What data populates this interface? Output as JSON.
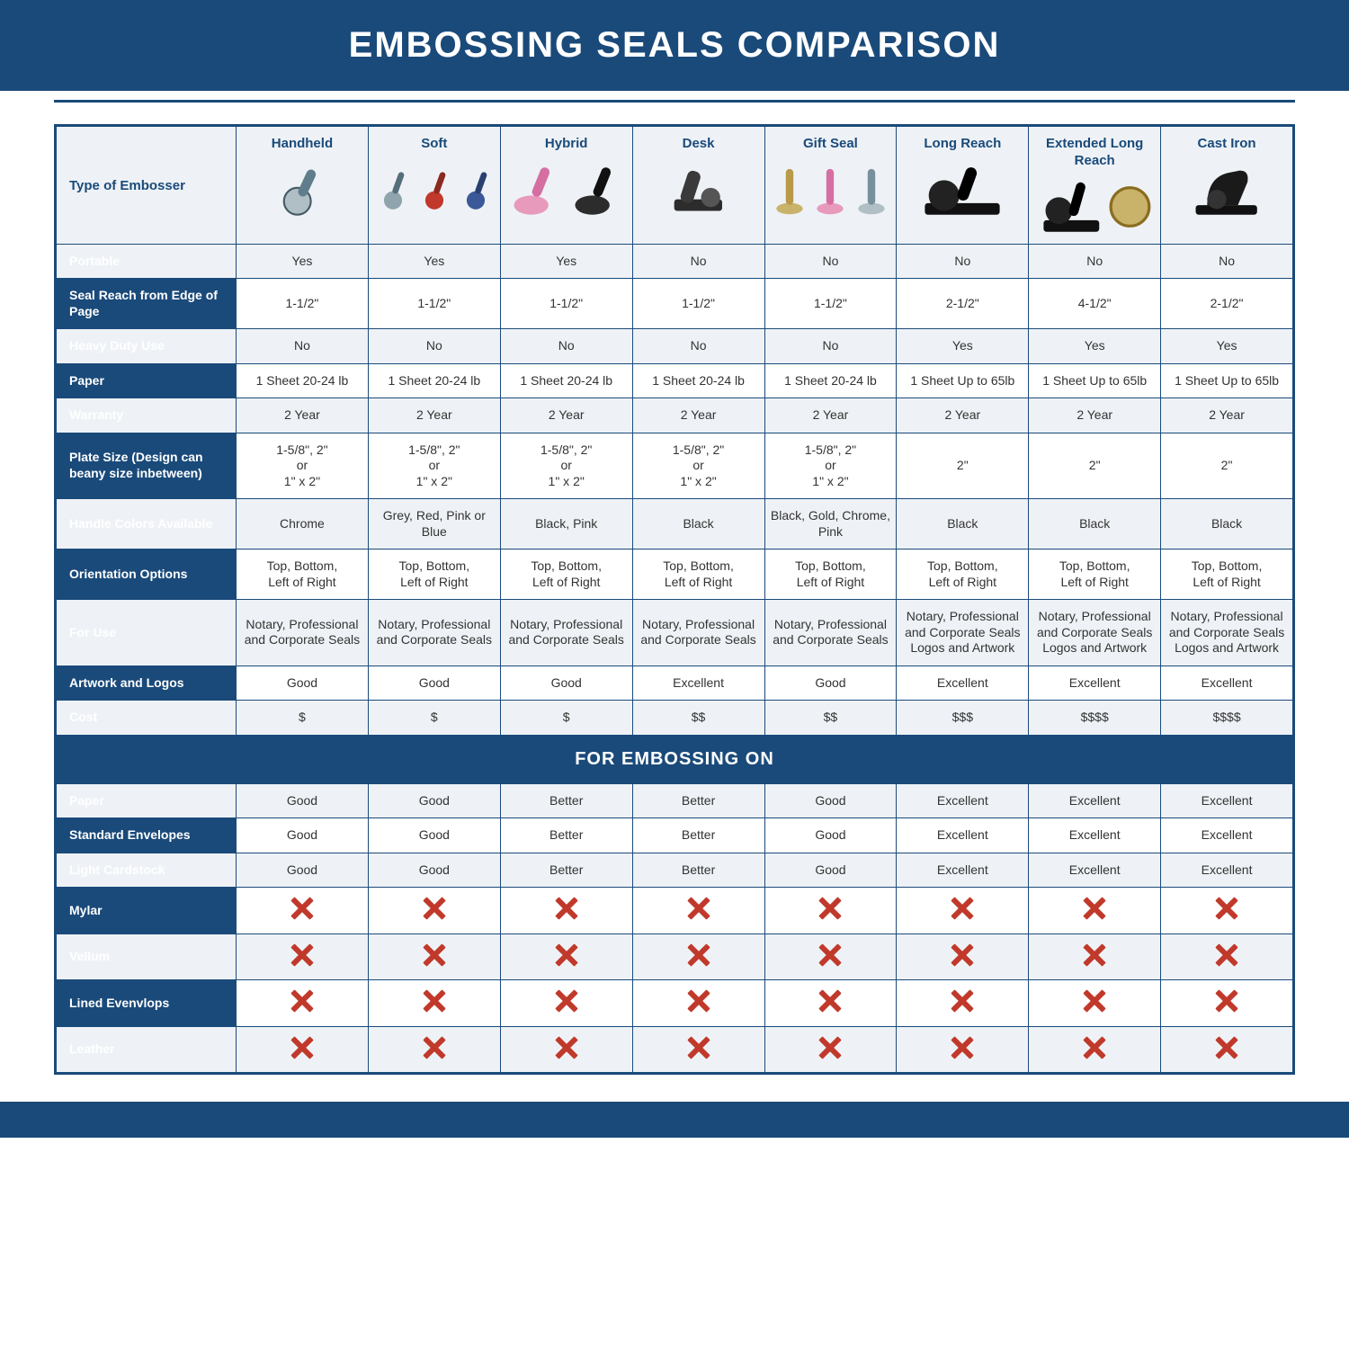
{
  "title": "EMBOSSING SEALS COMPARISON",
  "colors": {
    "brand": "#1a4a7a",
    "altRow": "#eef2f6",
    "bg": "#ffffff",
    "text": "#333333",
    "xmark": "#c0392b"
  },
  "table": {
    "headerLabel": "Type of Embosser",
    "columns": [
      "Handheld",
      "Soft",
      "Hybrid",
      "Desk",
      "Gift Seal",
      "Long Reach",
      "Extended Long Reach",
      "Cast Iron"
    ],
    "columnIcons": [
      "handheld",
      "soft-trio",
      "hybrid-pair",
      "desk",
      "gift-trio",
      "long-reach",
      "extended-long-reach",
      "cast-iron"
    ],
    "rows": [
      {
        "label": "Portable",
        "alt": true,
        "cells": [
          "Yes",
          "Yes",
          "Yes",
          "No",
          "No",
          "No",
          "No",
          "No"
        ]
      },
      {
        "label": "Seal Reach from Edge of Page",
        "alt": false,
        "cells": [
          "1-1/2\"",
          "1-1/2\"",
          "1-1/2\"",
          "1-1/2\"",
          "1-1/2\"",
          "2-1/2\"",
          "4-1/2\"",
          "2-1/2\""
        ]
      },
      {
        "label": "Heavy Duty Use",
        "alt": true,
        "cells": [
          "No",
          "No",
          "No",
          "No",
          "No",
          "Yes",
          "Yes",
          "Yes"
        ]
      },
      {
        "label": "Paper",
        "alt": false,
        "cells": [
          "1 Sheet 20-24 lb",
          "1 Sheet 20-24 lb",
          "1 Sheet 20-24 lb",
          "1 Sheet 20-24 lb",
          "1 Sheet 20-24 lb",
          "1 Sheet Up to 65lb",
          "1 Sheet Up to 65lb",
          "1 Sheet Up to 65lb"
        ]
      },
      {
        "label": "Warranty",
        "alt": true,
        "cells": [
          "2 Year",
          "2 Year",
          "2 Year",
          "2 Year",
          "2 Year",
          "2 Year",
          "2 Year",
          "2 Year"
        ]
      },
      {
        "label": "Plate Size (Design can beany size inbetween)",
        "alt": false,
        "cells": [
          "1-5/8\", 2\"\nor\n1\" x 2\"",
          "1-5/8\", 2\"\nor\n1\" x 2\"",
          "1-5/8\", 2\"\nor\n1\" x 2\"",
          "1-5/8\", 2\"\nor\n1\" x 2\"",
          "1-5/8\", 2\"\nor\n1\" x 2\"",
          "2\"",
          "2\"",
          "2\""
        ]
      },
      {
        "label": "Handle Colors Available",
        "alt": true,
        "cells": [
          "Chrome",
          "Grey, Red, Pink or Blue",
          "Black, Pink",
          "Black",
          "Black, Gold, Chrome, Pink",
          "Black",
          "Black",
          "Black"
        ]
      },
      {
        "label": "Orientation Options",
        "alt": false,
        "cells": [
          "Top, Bottom,\nLeft of Right",
          "Top, Bottom,\nLeft of Right",
          "Top, Bottom,\nLeft of Right",
          "Top, Bottom,\nLeft of Right",
          "Top, Bottom,\nLeft of Right",
          "Top, Bottom,\nLeft of Right",
          "Top, Bottom,\nLeft of Right",
          "Top, Bottom,\nLeft of Right"
        ]
      },
      {
        "label": "For Use",
        "alt": true,
        "cells": [
          "Notary, Professional and Corporate Seals",
          "Notary, Professional and Corporate Seals",
          "Notary, Professional and Corporate Seals",
          "Notary, Professional and Corporate Seals",
          "Notary, Professional and Corporate Seals",
          "Notary, Professional and Corporate Seals Logos and Artwork",
          "Notary, Professional and Corporate Seals Logos and Artwork",
          "Notary, Professional and Corporate Seals Logos and Artwork"
        ]
      },
      {
        "label": "Artwork and Logos",
        "alt": false,
        "cells": [
          "Good",
          "Good",
          "Good",
          "Excellent",
          "Good",
          "Excellent",
          "Excellent",
          "Excellent"
        ]
      },
      {
        "label": "Cost",
        "alt": true,
        "cells": [
          "$",
          "$",
          "$",
          "$$",
          "$$",
          "$$$",
          "$$$$",
          "$$$$"
        ]
      }
    ],
    "sectionLabel": "FOR EMBOSSING ON",
    "rows2": [
      {
        "label": "Paper",
        "alt": true,
        "cells": [
          "Good",
          "Good",
          "Better",
          "Better",
          "Good",
          "Excellent",
          "Excellent",
          "Excellent"
        ]
      },
      {
        "label": "Standard Envelopes",
        "alt": false,
        "cells": [
          "Good",
          "Good",
          "Better",
          "Better",
          "Good",
          "Excellent",
          "Excellent",
          "Excellent"
        ]
      },
      {
        "label": "Light Cardstock",
        "alt": true,
        "cells": [
          "Good",
          "Good",
          "Better",
          "Better",
          "Good",
          "Excellent",
          "Excellent",
          "Excellent"
        ]
      },
      {
        "label": "Mylar",
        "alt": false,
        "cells": [
          "X",
          "X",
          "X",
          "X",
          "X",
          "X",
          "X",
          "X"
        ]
      },
      {
        "label": "Vellum",
        "alt": true,
        "cells": [
          "X",
          "X",
          "X",
          "X",
          "X",
          "X",
          "X",
          "X"
        ]
      },
      {
        "label": "Lined Evenvlops",
        "alt": false,
        "cells": [
          "X",
          "X",
          "X",
          "X",
          "X",
          "X",
          "X",
          "X"
        ]
      },
      {
        "label": "Leather",
        "alt": true,
        "cells": [
          "X",
          "X",
          "X",
          "X",
          "X",
          "X",
          "X",
          "X"
        ]
      }
    ]
  }
}
